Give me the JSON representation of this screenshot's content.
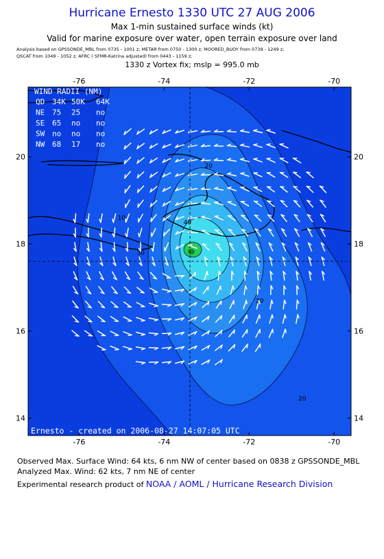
{
  "title": "Hurricane Ernesto 1330 UTC 27 AUG 2006",
  "subtitle1": "Max 1-min sustained surface winds (kt)",
  "subtitle2": "Valid for marine exposure over water, open terrain exposure over land",
  "sources_line1": "Analysis based on  GPSSONDE_MBL from 0735 - 1001 z;  METAR from 0750 - 1300 z;  MOORED_BUOY from 0739 - 1249 z;",
  "sources_line2": "QSCAT from 1049 - 1052 z;  AFRC ( SFMR-Katrina adjusted) from 0443 - 1159 z;",
  "vortex_fix": "1330 z Vortex fix; mslp = 995.0 mb",
  "map": {
    "lon_range": [
      -77.2,
      -69.6
    ],
    "lat_range": [
      13.6,
      21.6
    ],
    "lon_ticks": [
      "-76",
      "-74",
      "-72",
      "-70"
    ],
    "lat_ticks": [
      "14",
      "16",
      "18",
      "20"
    ],
    "center": {
      "lon": -73.55,
      "lat": 17.62
    },
    "colors": {
      "ocean_low": "#0a3de0",
      "w10": "#1254ec",
      "w20": "#1a6ef2",
      "w30": "#2a8ef2",
      "w40": "#36b8f4",
      "w50": "#42dcf0",
      "w60": "#2ac85a",
      "w70": "#0a8a2a",
      "label": "#ffffff"
    },
    "contour_labels": [
      {
        "text": "10",
        "lon": -75.0,
        "lat": 18.55
      },
      {
        "text": "20",
        "lon": -72.95,
        "lat": 19.75
      },
      {
        "text": "20",
        "lon": -71.75,
        "lat": 16.65
      },
      {
        "text": "20",
        "lon": -70.75,
        "lat": 14.4
      },
      {
        "text": "30",
        "lon": -74.55,
        "lat": 17.75
      },
      {
        "text": "40",
        "lon": -73.45,
        "lat": 18.45
      }
    ],
    "wind_radii": {
      "title": "WIND RADII (NM)",
      "header": [
        "QD",
        "34K",
        "50K",
        "64K"
      ],
      "rows": [
        [
          "NE",
          "75",
          "25",
          "no"
        ],
        [
          "SE",
          "65",
          "no",
          "no"
        ],
        [
          "SW",
          "no",
          "no",
          "no"
        ],
        [
          "NW",
          "68",
          "17",
          "no"
        ]
      ]
    },
    "created": "Ernesto - created on 2006-08-27 14:07:05 UTC"
  },
  "footer": {
    "line1": "Observed Max. Surface Wind: 64 kts, 6 nm NW of center based on 0838 z GPSSONDE_MBL",
    "line2": "Analyzed Max. Wind: 62 kts, 7 nm NE of center",
    "line3_prefix": "Experimental research product of",
    "line3_link": "NOAA / AOML / Hurricane Research Division"
  }
}
